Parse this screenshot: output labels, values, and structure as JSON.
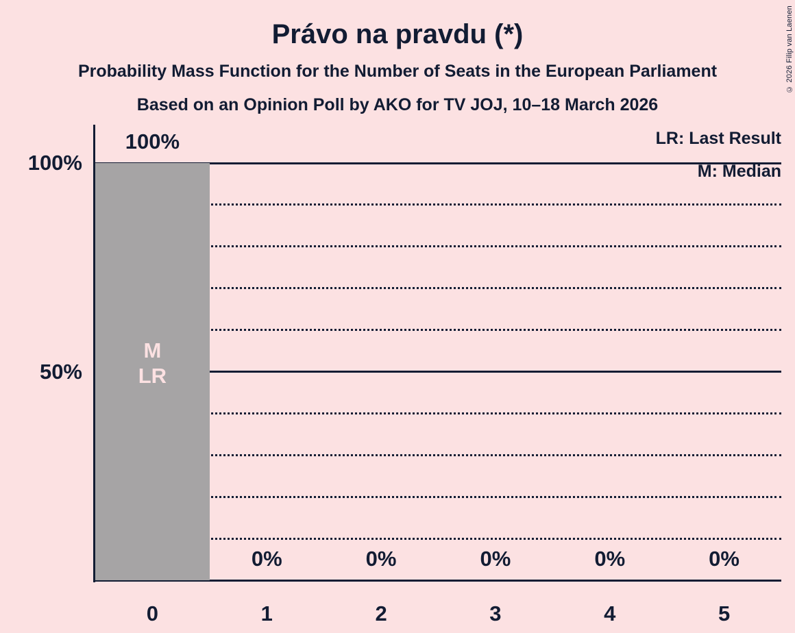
{
  "title": "Právo na pravdu (*)",
  "subtitle1": "Probability Mass Function for the Number of Seats in the European Parliament",
  "subtitle2": "Based on an Opinion Poll by AKO for TV JOJ, 10–18 March 2026",
  "copyright": "© 2026 Filip van Laenen",
  "legend": {
    "lr": "LR: Last Result",
    "m": "M: Median"
  },
  "colors": {
    "background": "#fce1e2",
    "text": "#121c33",
    "bar": "#a6a4a5",
    "bar_label": "#fce1e2"
  },
  "chart_data": {
    "type": "bar",
    "title": "Právo na pravdu (*)",
    "xlabel": "",
    "ylabel": "",
    "categories": [
      "0",
      "1",
      "2",
      "3",
      "4",
      "5"
    ],
    "values": [
      100,
      0,
      0,
      0,
      0,
      0
    ],
    "value_labels": [
      "100%",
      "0%",
      "0%",
      "0%",
      "0%",
      "0%"
    ],
    "ylim": [
      0,
      100
    ],
    "y_tick_labels": [
      {
        "value": 100,
        "text": "100%"
      },
      {
        "value": 50,
        "text": "50%"
      }
    ],
    "gridlines": {
      "solid": [
        100,
        50
      ],
      "dotted": [
        90,
        80,
        70,
        60,
        40,
        30,
        20,
        10
      ]
    },
    "annotations": {
      "median_seats": 0,
      "last_result_seats": 0,
      "bar_labels": [
        {
          "category_index": 0,
          "lines": [
            "M",
            "LR"
          ]
        }
      ]
    },
    "legend_position": "top-right",
    "grid": true
  }
}
